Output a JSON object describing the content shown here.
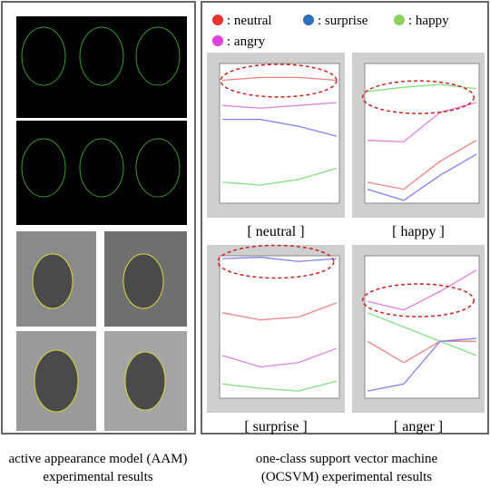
{
  "left_panel": {
    "caption": [
      "active appearance model (AAM)",
      "experimental results"
    ]
  },
  "right_panel": {
    "caption": [
      "one-class support vector machine",
      "(OCSVM) experimental results"
    ]
  },
  "legend": [
    {
      "label": ": neutral",
      "color": "#e8332f"
    },
    {
      "label": ": surprise",
      "color": "#2f6fc0"
    },
    {
      "label": ": happy",
      "color": "#8fd160"
    },
    {
      "label": ": angry",
      "color": "#e040e0"
    }
  ],
  "charts": [
    {
      "label": "[ neutral ]",
      "ylim": [
        0,
        1
      ],
      "series": [
        {
          "color": "#f08080",
          "values": [
            0.88,
            0.9,
            0.9,
            0.88
          ]
        },
        {
          "color": "#e080e0",
          "values": [
            0.7,
            0.68,
            0.7,
            0.72
          ]
        },
        {
          "color": "#8080f0",
          "values": [
            0.6,
            0.6,
            0.55,
            0.48
          ]
        },
        {
          "color": "#80e080",
          "values": [
            0.15,
            0.13,
            0.17,
            0.25
          ]
        }
      ]
    },
    {
      "label": "[ happy ]",
      "ylim": [
        0,
        1
      ],
      "series": [
        {
          "color": "#80e080",
          "values": [
            0.8,
            0.83,
            0.85,
            0.82
          ]
        },
        {
          "color": "#e080e0",
          "values": [
            0.45,
            0.44,
            0.65,
            0.72
          ]
        },
        {
          "color": "#f08080",
          "values": [
            0.15,
            0.1,
            0.3,
            0.45
          ]
        },
        {
          "color": "#8080f0",
          "values": [
            0.1,
            0.02,
            0.2,
            0.35
          ]
        }
      ]
    },
    {
      "label": "[ surprise ]",
      "ylim": [
        0,
        1
      ],
      "series": [
        {
          "color": "#8080f0",
          "values": [
            0.98,
            0.99,
            0.96,
            0.98
          ]
        },
        {
          "color": "#f08080",
          "values": [
            0.6,
            0.55,
            0.57,
            0.67
          ]
        },
        {
          "color": "#e080e0",
          "values": [
            0.3,
            0.22,
            0.25,
            0.35
          ]
        },
        {
          "color": "#80e080",
          "values": [
            0.1,
            0.07,
            0.05,
            0.12
          ]
        }
      ]
    },
    {
      "label": "[ anger ]",
      "ylim": [
        0,
        1
      ],
      "series": [
        {
          "color": "#e080e0",
          "values": [
            0.68,
            0.62,
            0.75,
            0.9
          ]
        },
        {
          "color": "#80e080",
          "values": [
            0.6,
            0.5,
            0.4,
            0.3
          ]
        },
        {
          "color": "#f08080",
          "values": [
            0.4,
            0.25,
            0.4,
            0.4
          ]
        },
        {
          "color": "#8080f0",
          "values": [
            0.05,
            0.1,
            0.4,
            0.42
          ]
        }
      ]
    }
  ]
}
